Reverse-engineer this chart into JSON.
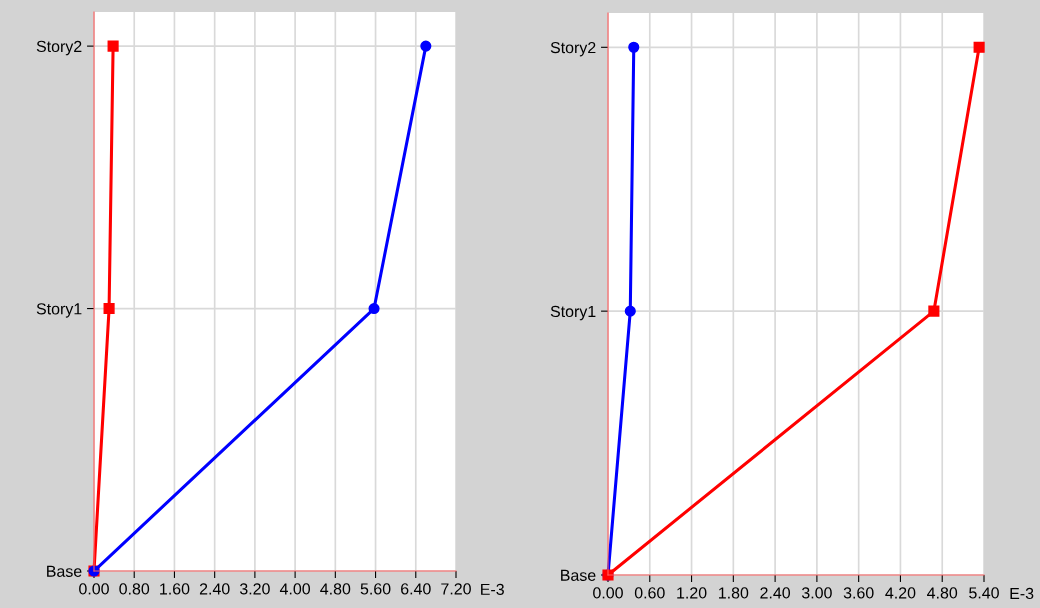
{
  "chart_data": [
    {
      "type": "line",
      "orientation": "horizontal",
      "xlabel": "E-3",
      "xlim": [
        0,
        7.2
      ],
      "xticks": [
        {
          "value": 0,
          "label": "0.00"
        },
        {
          "value": 0.8,
          "label": "0.80"
        },
        {
          "value": 1.6,
          "label": "1.60"
        },
        {
          "value": 2.4,
          "label": "2.40"
        },
        {
          "value": 3.2,
          "label": "3.20"
        },
        {
          "value": 4.0,
          "label": "4.00"
        },
        {
          "value": 4.8,
          "label": "4.80"
        },
        {
          "value": 5.6,
          "label": "5.60"
        },
        {
          "value": 6.4,
          "label": "6.40"
        },
        {
          "value": 7.2,
          "label": "7.20"
        }
      ],
      "categories": [
        "Story2",
        "Story1",
        "Base"
      ],
      "grid": true,
      "series": [
        {
          "color": "#ff0000",
          "marker": "square",
          "values": [
            0.38,
            0.3,
            0
          ]
        },
        {
          "color": "#0000ff",
          "marker": "circle",
          "values": [
            6.6,
            5.57,
            0
          ]
        }
      ]
    },
    {
      "type": "line",
      "orientation": "horizontal",
      "xlabel": "E-3",
      "xlim": [
        0,
        5.4
      ],
      "xticks": [
        {
          "value": 0,
          "label": "0.00"
        },
        {
          "value": 0.6,
          "label": "0.60"
        },
        {
          "value": 1.2,
          "label": "1.20"
        },
        {
          "value": 1.8,
          "label": "1.80"
        },
        {
          "value": 2.4,
          "label": "2.40"
        },
        {
          "value": 3.0,
          "label": "3.00"
        },
        {
          "value": 3.6,
          "label": "3.60"
        },
        {
          "value": 4.2,
          "label": "4.20"
        },
        {
          "value": 4.8,
          "label": "4.80"
        },
        {
          "value": 5.4,
          "label": "5.40"
        }
      ],
      "categories": [
        "Story2",
        "Story1",
        "Base"
      ],
      "grid": true,
      "series": [
        {
          "color": "#0000ff",
          "marker": "circle",
          "values": [
            0.37,
            0.32,
            0
          ]
        },
        {
          "color": "#ff0000",
          "marker": "square",
          "values": [
            5.33,
            4.68,
            0
          ]
        }
      ]
    }
  ]
}
